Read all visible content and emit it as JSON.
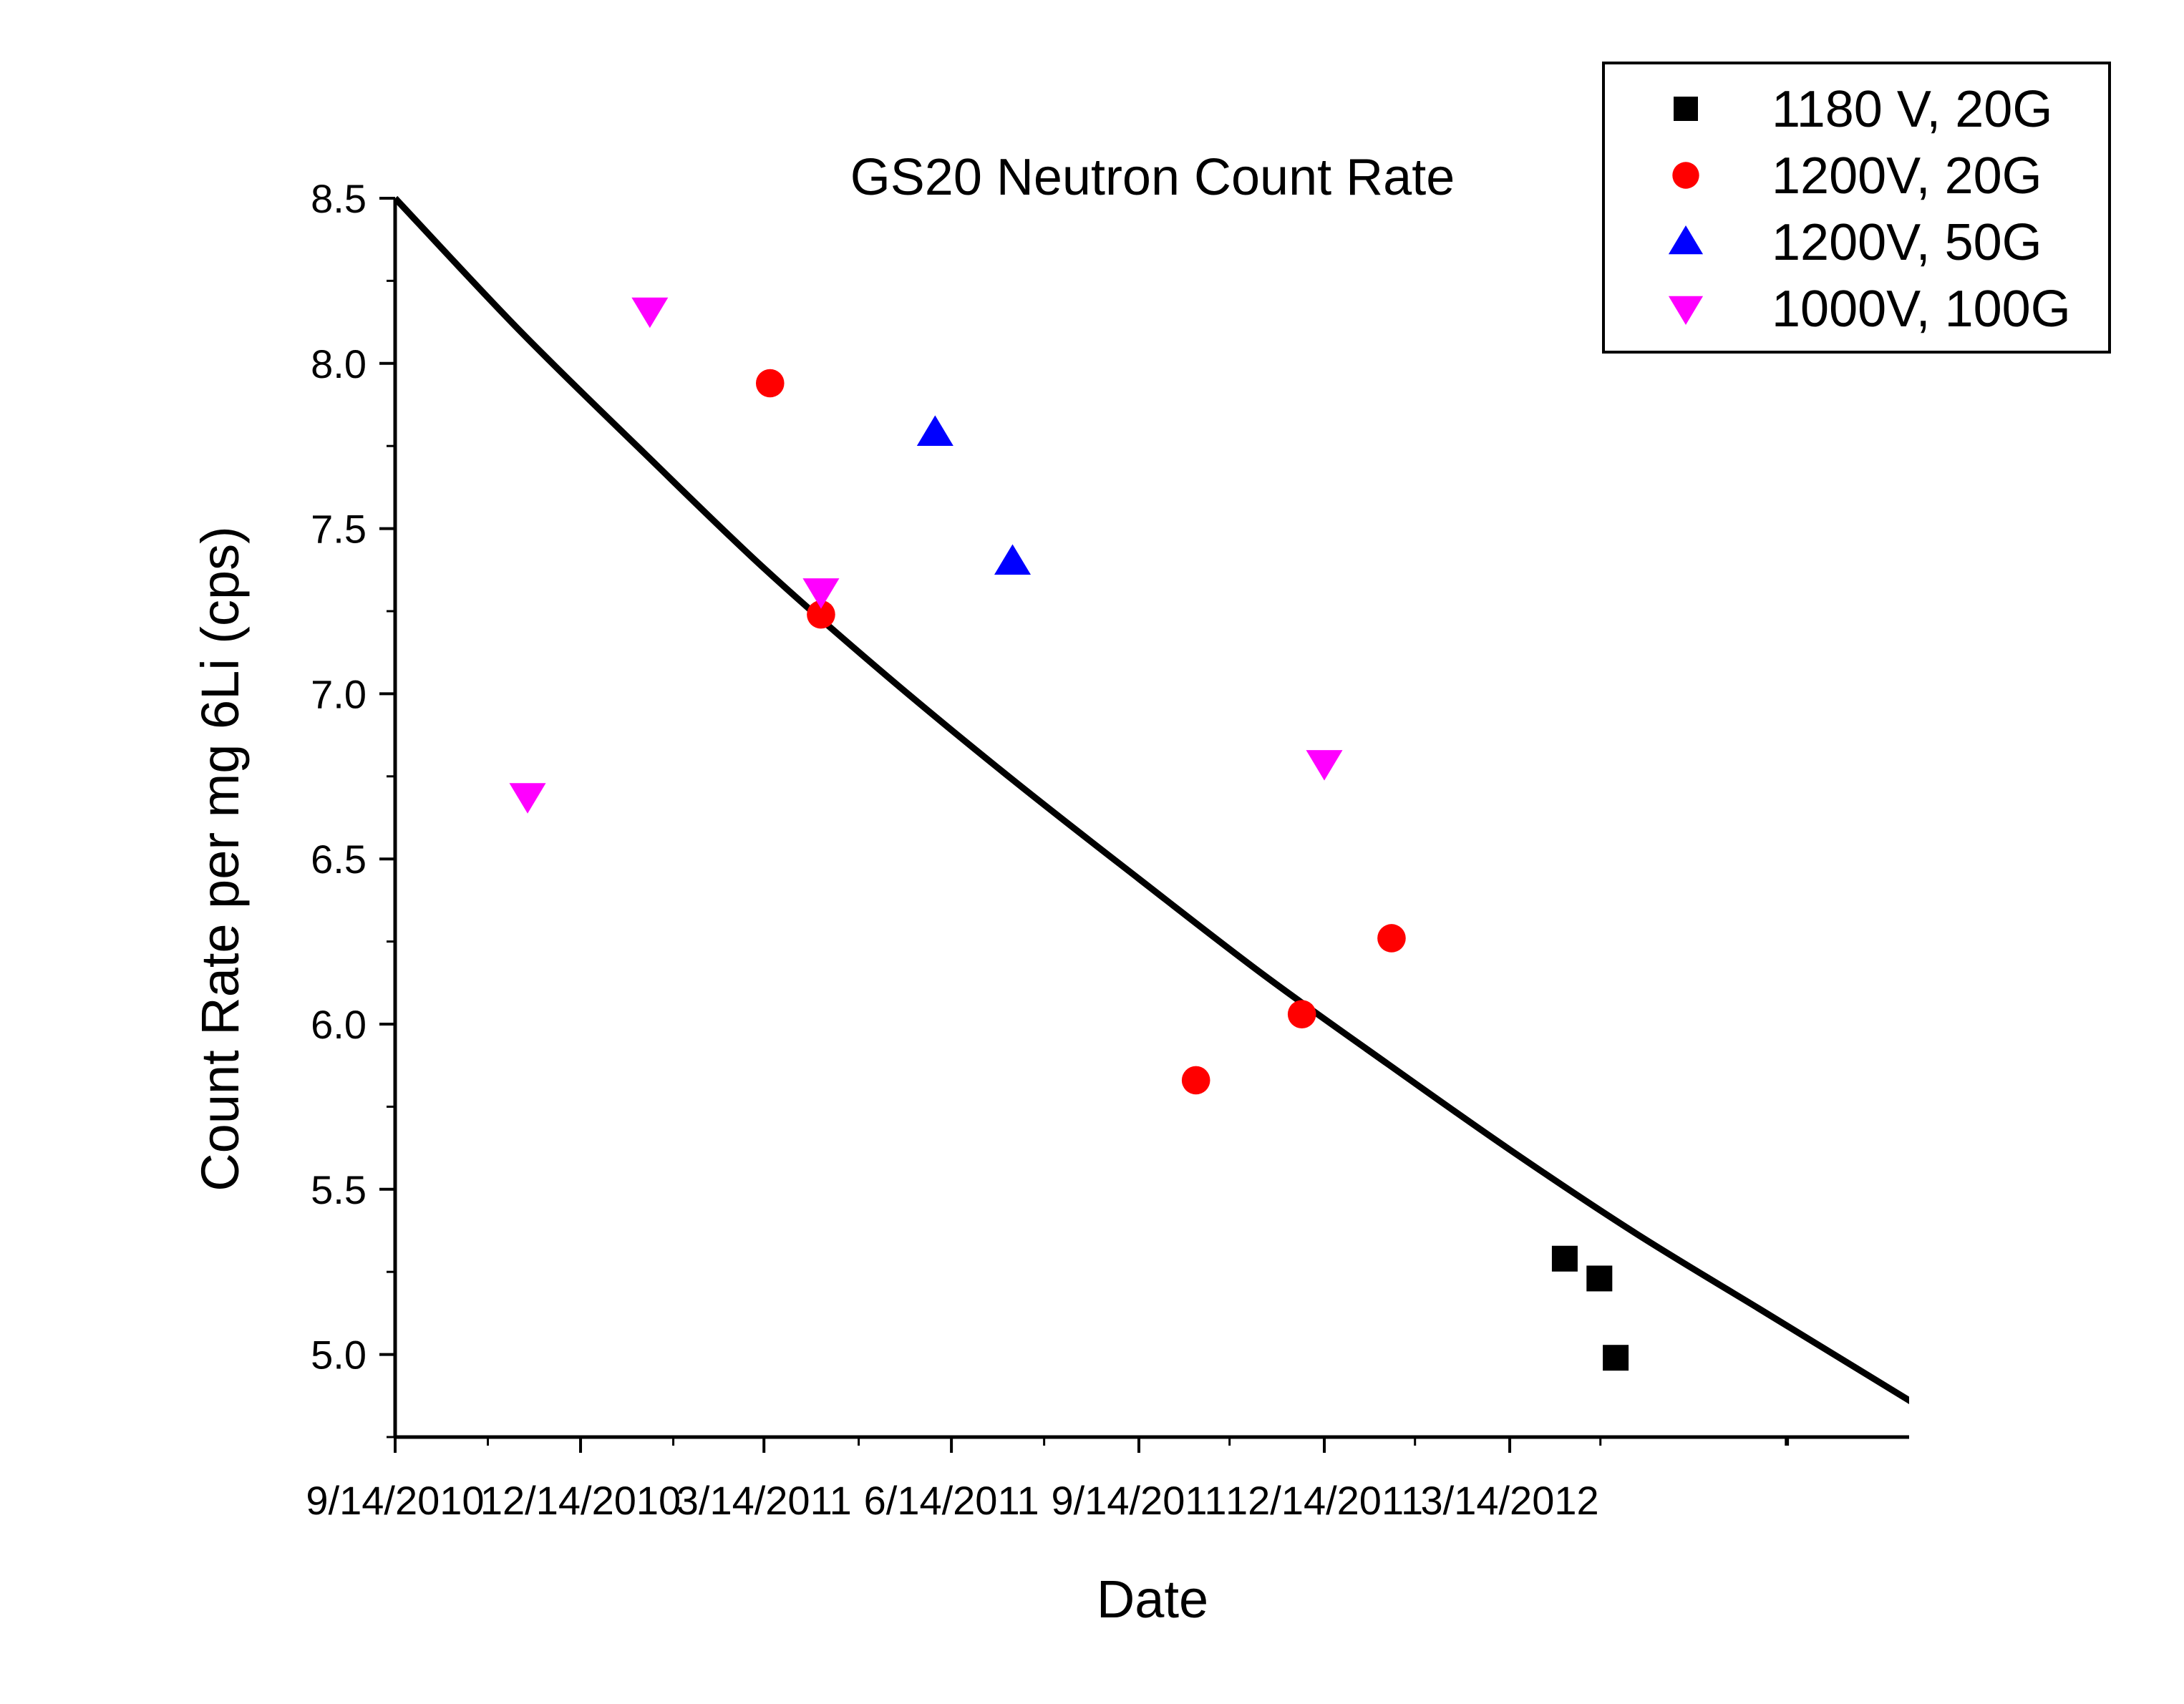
{
  "chart_data": {
    "type": "scatter",
    "title": "GS20 Neutron Count Rate",
    "xlabel": "Date",
    "ylabel": "Count Rate per mg 6Li (cps)",
    "x_axis_type": "date",
    "xlim": [
      "2010-09-14",
      "2012-09-26"
    ],
    "ylim": [
      4.75,
      8.5
    ],
    "xticks": [
      {
        "date": "2010-09-14",
        "label": "9/14/2010"
      },
      {
        "date": "2010-12-14",
        "label": "12/14/2010"
      },
      {
        "date": "2011-03-14",
        "label": "3/14/2011"
      },
      {
        "date": "2011-06-14",
        "label": "6/14/2011"
      },
      {
        "date": "2011-09-14",
        "label": "9/14/2011"
      },
      {
        "date": "2011-12-14",
        "label": "12/14/2011"
      },
      {
        "date": "2012-03-14",
        "label": "3/14/2012"
      }
    ],
    "yticks": [
      "5.0",
      "5.5",
      "6.0",
      "6.5",
      "7.0",
      "7.5",
      "8.0",
      "8.5"
    ],
    "grid": false,
    "legend_position": "top-right",
    "series": [
      {
        "name": "1180 V, 20G",
        "marker": "square",
        "color": "#000000",
        "points": [
          {
            "x": "2012-04-10",
            "y": 5.29
          },
          {
            "x": "2012-04-27",
            "y": 5.23
          },
          {
            "x": "2012-05-05",
            "y": 4.99
          }
        ]
      },
      {
        "name": "1200V, 20G",
        "marker": "circle",
        "color": "#ff0000",
        "points": [
          {
            "x": "2011-03-17",
            "y": 7.94
          },
          {
            "x": "2011-04-11",
            "y": 7.24
          },
          {
            "x": "2011-10-12",
            "y": 5.83
          },
          {
            "x": "2011-12-03",
            "y": 6.03
          },
          {
            "x": "2012-01-16",
            "y": 6.26
          }
        ]
      },
      {
        "name": "1200V, 50G",
        "marker": "triangle-up",
        "color": "#0000ff",
        "points": [
          {
            "x": "2011-06-06",
            "y": 7.79
          },
          {
            "x": "2011-07-14",
            "y": 7.4
          }
        ]
      },
      {
        "name": "1000V, 100G",
        "marker": "triangle-down",
        "color": "#ff00ff",
        "points": [
          {
            "x": "2010-11-18",
            "y": 6.69
          },
          {
            "x": "2011-01-17",
            "y": 8.16
          },
          {
            "x": "2011-04-11",
            "y": 7.31
          },
          {
            "x": "2011-12-14",
            "y": 6.79
          }
        ]
      }
    ],
    "fit_curve": {
      "color": "#000000",
      "points": [
        {
          "x": "2010-09-14",
          "y": 8.5
        },
        {
          "x": "2010-11-14",
          "y": 8.1
        },
        {
          "x": "2011-01-14",
          "y": 7.73
        },
        {
          "x": "2011-03-14",
          "y": 7.38
        },
        {
          "x": "2011-05-14",
          "y": 7.05
        },
        {
          "x": "2011-07-14",
          "y": 6.74
        },
        {
          "x": "2011-09-14",
          "y": 6.44
        },
        {
          "x": "2011-11-14",
          "y": 6.15
        },
        {
          "x": "2012-01-14",
          "y": 5.88
        },
        {
          "x": "2012-03-14",
          "y": 5.62
        },
        {
          "x": "2012-05-14",
          "y": 5.37
        },
        {
          "x": "2012-07-14",
          "y": 5.14
        }
      ]
    }
  }
}
